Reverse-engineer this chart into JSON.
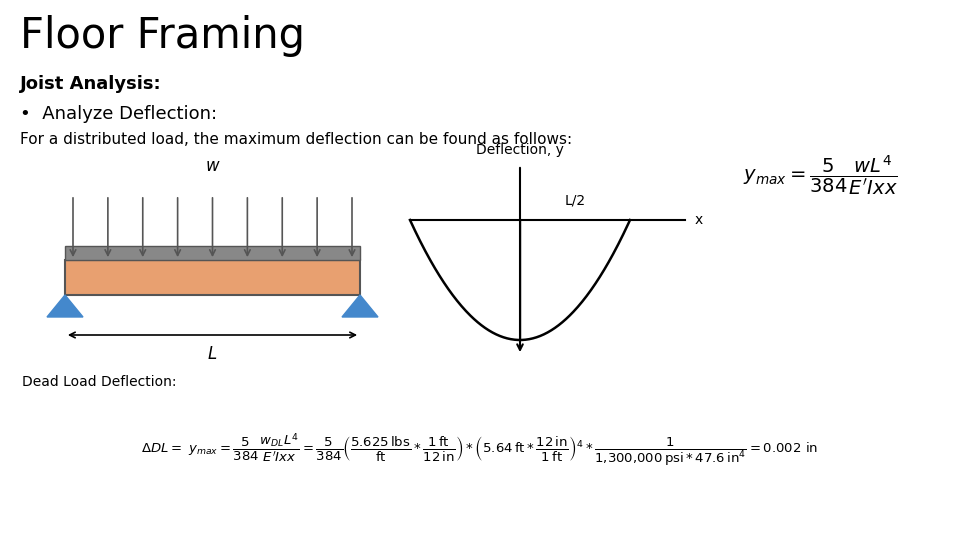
{
  "title": "Floor Framing",
  "subtitle": "Joist Analysis:",
  "bullet": "•  Analyze Deflection:",
  "body_text": "For a distributed load, the maximum deflection can be found as follows:",
  "deflection_label": "Deflection, y",
  "beam_label_w": "w",
  "beam_label_L": "L",
  "beam_label_L2": "L/2",
  "beam_label_x": "x",
  "dead_load_label": "Dead Load Deflection:",
  "bg_color": "#ffffff",
  "beam_fill_color": "#E8A070",
  "beam_border_color": "#555555",
  "top_bar_color": "#888888",
  "support_color": "#4488CC",
  "arrow_color": "#555555",
  "text_color": "#000000",
  "title_fontsize": 30,
  "subtitle_fontsize": 13,
  "bullet_fontsize": 13,
  "body_fontsize": 11,
  "formula_fontsize": 14,
  "dead_load_fontsize": 10
}
